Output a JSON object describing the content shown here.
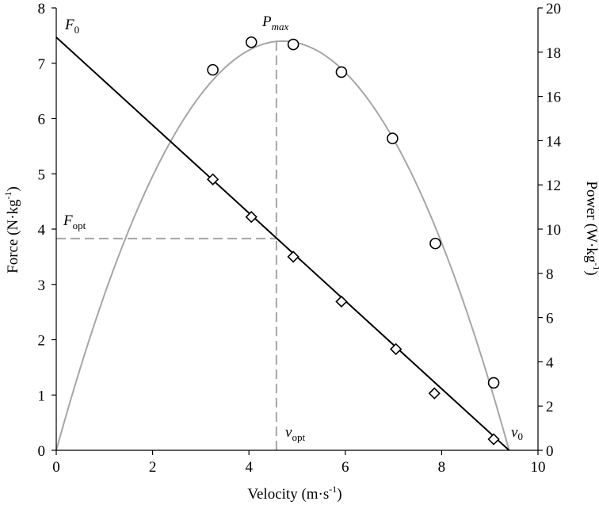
{
  "chart_data": {
    "type": "scatter",
    "xlabel": "Velocity (m·s",
    "xlabel_sup": "-1",
    "xlabel_tail": ")",
    "ylabel": "Force (N·kg",
    "ylabel_sup": "-1",
    "ylabel_tail": ")",
    "y2label": "Power (W·kg",
    "y2label_sup": "-1",
    "y2label_tail": ")",
    "xlim": [
      0,
      10
    ],
    "ylim": [
      0,
      8
    ],
    "y2lim": [
      0,
      20
    ],
    "x_ticks": [
      "0",
      "2",
      "4",
      "6",
      "8",
      "10"
    ],
    "y_ticks": [
      "0",
      "1",
      "2",
      "3",
      "4",
      "5",
      "6",
      "7",
      "8"
    ],
    "y2_ticks": [
      "0",
      "2",
      "4",
      "6",
      "8",
      "10",
      "12",
      "14",
      "16",
      "18",
      "20"
    ],
    "grid": false,
    "force_points": {
      "marker": "diamond",
      "x": [
        3.25,
        4.05,
        4.92,
        5.92,
        7.05,
        7.85,
        9.08
      ],
      "y": [
        4.9,
        4.22,
        3.5,
        2.69,
        1.83,
        1.03,
        0.2
      ]
    },
    "power_points": {
      "marker": "circle",
      "x": [
        3.25,
        4.05,
        4.92,
        5.92,
        6.98,
        7.87,
        9.08
      ],
      "y": [
        17.2,
        18.45,
        18.35,
        17.1,
        14.1,
        9.35,
        3.05
      ]
    },
    "force_velocity_fit": {
      "F0": 7.47,
      "v0": 9.4
    },
    "power_velocity_fit": {
      "Pmax": 18.5,
      "v_opt": 4.57,
      "v0": 9.4
    },
    "optimal": {
      "v_opt": 4.57,
      "F_opt": 3.83
    },
    "colors": {
      "force_line": "#000000",
      "power_curve": "#a6a6a6",
      "guide_lines": "#a6a6a6"
    },
    "annotations": {
      "F0": {
        "base": "F",
        "sub": "0"
      },
      "Pmax": {
        "base": "P",
        "sub": "max"
      },
      "Fopt": {
        "base": "F",
        "sub": "opt"
      },
      "vopt": {
        "base": "v",
        "sub": "opt"
      },
      "v0": {
        "base": "v",
        "sub": "0"
      }
    }
  }
}
